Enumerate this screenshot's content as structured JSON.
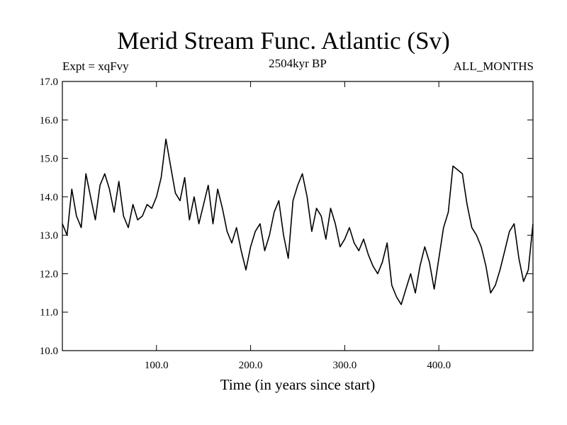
{
  "chart_data": {
    "type": "line",
    "title": "Merid Stream Func. Atlantic (Sv)",
    "subtitle": "2504kyr BP",
    "left_label": "Expt = xqFvy",
    "right_label": "ALL_MONTHS",
    "xlabel": "Time (in years since start)",
    "ylabel": "",
    "xlim": [
      0,
      500
    ],
    "ylim": [
      10.0,
      17.0
    ],
    "x_ticks": [
      100,
      200,
      300,
      400
    ],
    "x_tick_labels": [
      "100.0",
      "200.0",
      "300.0",
      "400.0"
    ],
    "y_ticks": [
      10,
      11,
      12,
      13,
      14,
      15,
      16,
      17
    ],
    "y_tick_labels": [
      "10.0",
      "11.0",
      "12.0",
      "13.0",
      "14.0",
      "15.0",
      "16.0",
      "17.0"
    ],
    "x": [
      0,
      5,
      10,
      15,
      20,
      25,
      30,
      35,
      40,
      45,
      50,
      55,
      60,
      65,
      70,
      75,
      80,
      85,
      90,
      95,
      100,
      105,
      110,
      115,
      120,
      125,
      130,
      135,
      140,
      145,
      150,
      155,
      160,
      165,
      170,
      175,
      180,
      185,
      190,
      195,
      200,
      205,
      210,
      215,
      220,
      225,
      230,
      235,
      240,
      245,
      250,
      255,
      260,
      265,
      270,
      275,
      280,
      285,
      290,
      295,
      300,
      305,
      310,
      315,
      320,
      325,
      330,
      335,
      340,
      345,
      350,
      355,
      360,
      365,
      370,
      375,
      380,
      385,
      390,
      395,
      400,
      405,
      410,
      415,
      420,
      425,
      430,
      435,
      440,
      445,
      450,
      455,
      460,
      465,
      470,
      475,
      480,
      485,
      490,
      495,
      500
    ],
    "values": [
      13.3,
      13.0,
      14.2,
      13.5,
      13.2,
      14.6,
      14.0,
      13.4,
      14.3,
      14.6,
      14.2,
      13.6,
      14.4,
      13.5,
      13.2,
      13.8,
      13.4,
      13.5,
      13.8,
      13.7,
      14.0,
      14.5,
      15.5,
      14.8,
      14.1,
      13.9,
      14.5,
      13.4,
      14.0,
      13.3,
      13.8,
      14.3,
      13.3,
      14.2,
      13.7,
      13.1,
      12.8,
      13.2,
      12.6,
      12.1,
      12.7,
      13.1,
      13.3,
      12.6,
      13.0,
      13.6,
      13.9,
      13.0,
      12.4,
      13.9,
      14.3,
      14.6,
      14.0,
      13.1,
      13.7,
      13.5,
      12.9,
      13.7,
      13.3,
      12.7,
      12.9,
      13.2,
      12.8,
      12.6,
      12.9,
      12.5,
      12.2,
      12.0,
      12.3,
      12.8,
      11.7,
      11.4,
      11.2,
      11.6,
      12.0,
      11.5,
      12.2,
      12.7,
      12.3,
      11.6,
      12.4,
      13.2,
      13.6,
      14.8,
      14.7,
      14.6,
      13.8,
      13.2,
      13.0,
      12.7,
      12.2,
      11.5,
      11.7,
      12.1,
      12.6,
      13.1,
      13.3,
      12.4,
      11.8,
      12.1,
      13.3
    ]
  }
}
